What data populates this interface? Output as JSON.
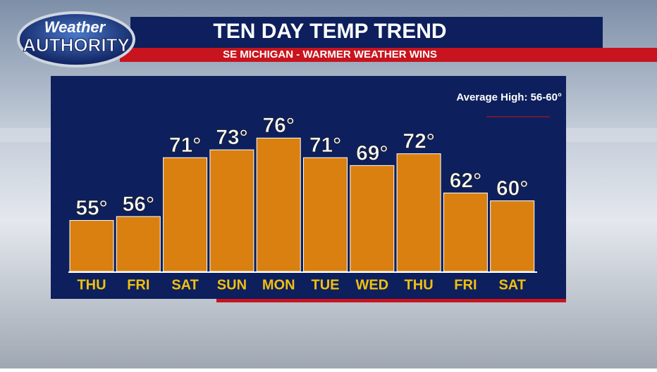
{
  "logo": {
    "line1": "Weather",
    "line2": "AUTHORITY"
  },
  "chart_data": {
    "type": "bar",
    "title": "TEN DAY TEMP TREND",
    "subtitle": "SE MICHIGAN - WARMER WEATHER WINS",
    "annotation": "Average High: 56-60°",
    "categories": [
      "THU",
      "FRI",
      "SAT",
      "SUN",
      "MON",
      "TUE",
      "WED",
      "THU",
      "FRI",
      "SAT"
    ],
    "values": [
      55,
      56,
      71,
      73,
      76,
      71,
      69,
      72,
      62,
      60
    ],
    "value_labels": [
      "55°",
      "56°",
      "71°",
      "73°",
      "76°",
      "71°",
      "69°",
      "72°",
      "62°",
      "60°"
    ],
    "color": "#d98010",
    "ylim": [
      42,
      80
    ]
  }
}
